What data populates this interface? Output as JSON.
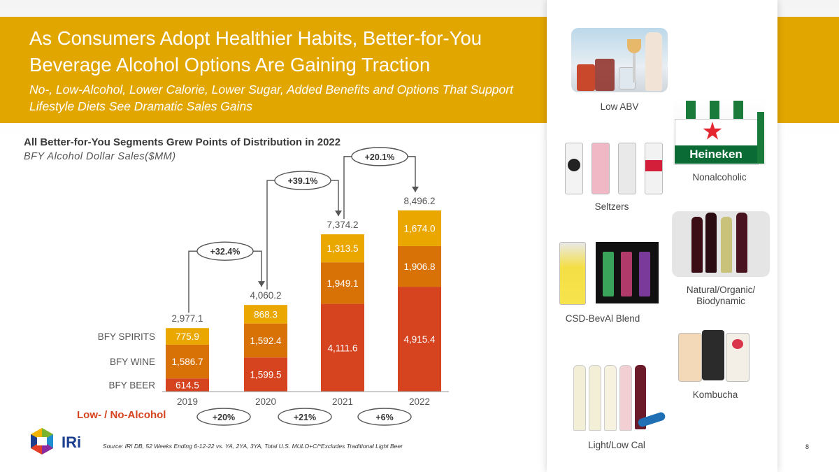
{
  "header": {
    "title": "As Consumers Adopt Healthier Habits, Better-for-You Beverage Alcohol Options Are Gaining Traction",
    "subtitle": "No-, Low-Alcohol, Lower Calorie, Lower Sugar, Added Benefits and Options That Support Lifestyle Diets See Dramatic Sales Gains"
  },
  "chart_title": "All Better-for-You Segments Grew Points of Distribution in 2022",
  "chart_subtitle": "BFY Alcohol Dollar Sales($MM)",
  "chart_data": {
    "type": "bar",
    "stacked": true,
    "categories": [
      "2019",
      "2020",
      "2021",
      "2022"
    ],
    "series": [
      {
        "name": "BFY BEER",
        "values": [
          614.5,
          1599.5,
          4111.6,
          4915.4
        ],
        "color": "#d5431f"
      },
      {
        "name": "BFY WINE",
        "values": [
          1586.7,
          1592.4,
          1949.1,
          1906.8
        ],
        "color": "#d97206"
      },
      {
        "name": "BFY SPIRITS",
        "values": [
          775.9,
          868.3,
          1313.5,
          1674.0
        ],
        "color": "#e9a700"
      }
    ],
    "totals": [
      "2,977.1",
      "4,060.2",
      "7,374.2",
      "8,496.2"
    ],
    "value_labels": [
      [
        "614.5",
        "1,599.5",
        "4,111.6",
        "4,915.4"
      ],
      [
        "1,586.7",
        "1,592.4",
        "1,949.1",
        "1,906.8"
      ],
      [
        "775.9",
        "868.3",
        "1,313.5",
        "1,674.0"
      ]
    ],
    "growth_labels": [
      "+32.4%",
      "+39.1%",
      "+20.1%"
    ],
    "low_no_growth": [
      "+20%",
      "+21%",
      "+6%"
    ],
    "ylim": [
      0,
      9000
    ]
  },
  "low_no_label": "Low- / No-Alcohol",
  "source": "Source: IRI DB, 52 Weeks Ending 6-12-22 vs. YA, 2YA, 3YA, Total U.S. MULO+C/*Excludes Traditional Light Beer",
  "page_number": "8",
  "logo_text": "IRi",
  "products": [
    {
      "label": "Low ABV",
      "icon": "low-abv-drinks-photo"
    },
    {
      "label": "Nonalcoholic",
      "icon": "heineken-zero-photo"
    },
    {
      "label": "Seltzers",
      "icon": "seltzer-cans-photo"
    },
    {
      "label": "Natural/Organic/\nBiodynamic",
      "icon": "wine-bottles-photo"
    },
    {
      "label": "CSD-BevAl Blend",
      "icon": "csd-cans-photo"
    },
    {
      "label": "Kombucha",
      "icon": "kombucha-cans-photo"
    },
    {
      "label": "Light/Low Cal",
      "icon": "light-wine-bottles-photo"
    }
  ]
}
